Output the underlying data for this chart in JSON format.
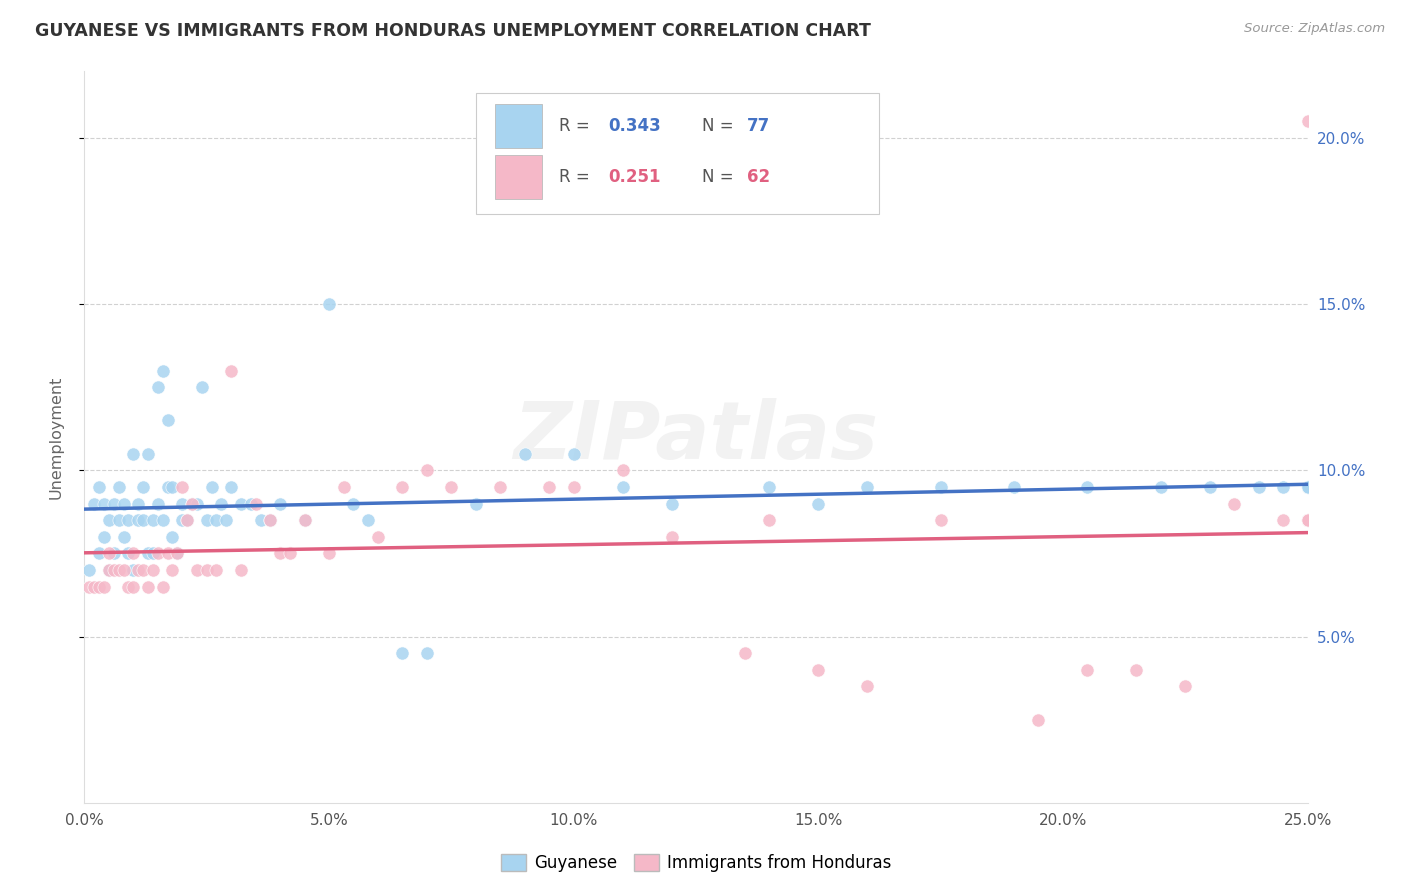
{
  "title": "GUYANESE VS IMMIGRANTS FROM HONDURAS UNEMPLOYMENT CORRELATION CHART",
  "source": "Source: ZipAtlas.com",
  "ylabel": "Unemployment",
  "xlim": [
    0.0,
    25.0
  ],
  "ylim": [
    0.0,
    22.0
  ],
  "guyanese_color": "#a8d4f0",
  "honduras_color": "#f5b8c8",
  "guyanese_line_color": "#4472c4",
  "honduras_line_color": "#e06080",
  "ytick_color": "#4472c4",
  "legend_R1": "0.343",
  "legend_N1": "77",
  "legend_R2": "0.251",
  "legend_N2": "62",
  "watermark": "ZIPatlas",
  "guyanese_x": [
    0.1,
    0.2,
    0.3,
    0.3,
    0.4,
    0.4,
    0.5,
    0.5,
    0.6,
    0.6,
    0.7,
    0.7,
    0.8,
    0.8,
    0.9,
    0.9,
    1.0,
    1.0,
    1.1,
    1.1,
    1.2,
    1.2,
    1.3,
    1.3,
    1.4,
    1.4,
    1.5,
    1.5,
    1.6,
    1.6,
    1.7,
    1.7,
    1.8,
    1.8,
    1.9,
    2.0,
    2.0,
    2.1,
    2.2,
    2.3,
    2.4,
    2.5,
    2.6,
    2.7,
    2.8,
    2.9,
    3.0,
    3.2,
    3.4,
    3.6,
    3.8,
    4.0,
    4.5,
    5.0,
    5.5,
    5.8,
    6.5,
    7.0,
    8.0,
    9.0,
    10.0,
    11.0,
    12.0,
    14.0,
    15.0,
    16.0,
    17.5,
    19.0,
    20.5,
    22.0,
    23.0,
    24.0,
    24.5,
    25.0,
    25.0,
    25.0,
    25.0
  ],
  "guyanese_y": [
    7.0,
    9.0,
    9.5,
    7.5,
    8.0,
    9.0,
    8.5,
    7.0,
    9.0,
    7.5,
    8.5,
    9.5,
    9.0,
    8.0,
    8.5,
    7.5,
    7.0,
    10.5,
    8.5,
    9.0,
    9.5,
    8.5,
    7.5,
    10.5,
    8.5,
    7.5,
    12.5,
    9.0,
    13.0,
    8.5,
    11.5,
    9.5,
    9.5,
    8.0,
    7.5,
    9.0,
    8.5,
    8.5,
    9.0,
    9.0,
    12.5,
    8.5,
    9.5,
    8.5,
    9.0,
    8.5,
    9.5,
    9.0,
    9.0,
    8.5,
    8.5,
    9.0,
    8.5,
    15.0,
    9.0,
    8.5,
    4.5,
    4.5,
    9.0,
    10.5,
    10.5,
    9.5,
    9.0,
    9.5,
    9.0,
    9.5,
    9.5,
    9.5,
    9.5,
    9.5,
    9.5,
    9.5,
    9.5,
    9.5,
    9.5,
    9.5,
    9.5
  ],
  "honduras_x": [
    0.1,
    0.2,
    0.3,
    0.4,
    0.5,
    0.5,
    0.6,
    0.7,
    0.8,
    0.9,
    1.0,
    1.0,
    1.1,
    1.2,
    1.3,
    1.4,
    1.5,
    1.6,
    1.7,
    1.8,
    1.9,
    2.0,
    2.1,
    2.2,
    2.3,
    2.5,
    2.7,
    3.0,
    3.2,
    3.5,
    3.8,
    4.0,
    4.2,
    4.5,
    5.0,
    5.3,
    6.0,
    6.5,
    7.0,
    7.5,
    8.5,
    9.5,
    10.0,
    11.0,
    12.0,
    13.5,
    14.0,
    15.0,
    16.0,
    17.5,
    19.5,
    20.5,
    21.5,
    22.5,
    23.5,
    24.5,
    25.0,
    25.0,
    25.0,
    25.0,
    25.0,
    25.0
  ],
  "honduras_y": [
    6.5,
    6.5,
    6.5,
    6.5,
    7.0,
    7.5,
    7.0,
    7.0,
    7.0,
    6.5,
    6.5,
    7.5,
    7.0,
    7.0,
    6.5,
    7.0,
    7.5,
    6.5,
    7.5,
    7.0,
    7.5,
    9.5,
    8.5,
    9.0,
    7.0,
    7.0,
    7.0,
    13.0,
    7.0,
    9.0,
    8.5,
    7.5,
    7.5,
    8.5,
    7.5,
    9.5,
    8.0,
    9.5,
    10.0,
    9.5,
    9.5,
    9.5,
    9.5,
    10.0,
    8.0,
    4.5,
    8.5,
    4.0,
    3.5,
    8.5,
    2.5,
    4.0,
    4.0,
    3.5,
    9.0,
    8.5,
    8.5,
    8.5,
    8.5,
    8.5,
    20.5,
    8.5
  ]
}
